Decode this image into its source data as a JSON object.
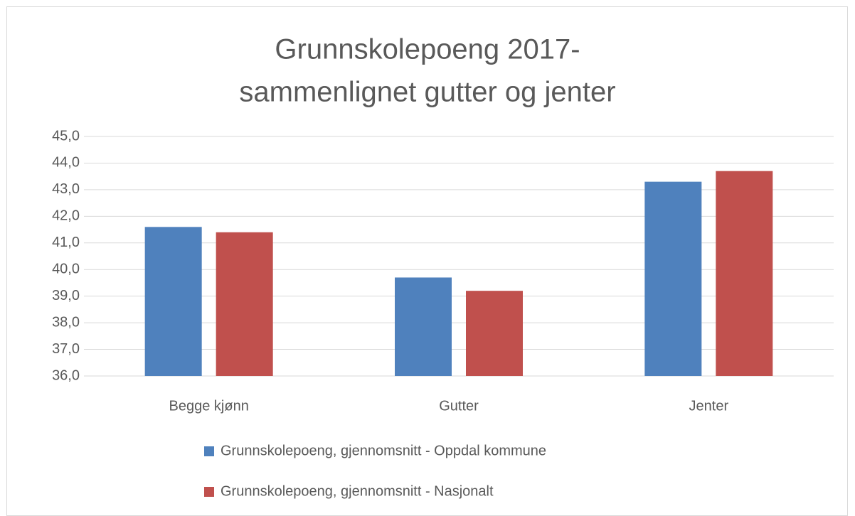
{
  "chart_data": {
    "type": "bar",
    "title": [
      "Grunnskolepoeng 2017-",
      "sammenlignet gutter og jenter"
    ],
    "categories": [
      "Begge kjønn",
      "Gutter",
      "Jenter"
    ],
    "series": [
      {
        "name": "Grunnskolepoeng, gjennomsnitt - Oppdal kommune",
        "color": "#4f81bd",
        "values": [
          41.6,
          39.7,
          43.3
        ]
      },
      {
        "name": "Grunnskolepoeng, gjennomsnitt - Nasjonalt",
        "color": "#c0504d",
        "values": [
          41.4,
          39.2,
          43.7
        ]
      }
    ],
    "ylim": [
      36,
      45
    ],
    "yticks": [
      {
        "value": 36,
        "label": "36,0"
      },
      {
        "value": 37,
        "label": "37,0"
      },
      {
        "value": 38,
        "label": "38,0"
      },
      {
        "value": 39,
        "label": "39,0"
      },
      {
        "value": 40,
        "label": "40,0"
      },
      {
        "value": 41,
        "label": "41,0"
      },
      {
        "value": 42,
        "label": "42,0"
      },
      {
        "value": 43,
        "label": "43,0"
      },
      {
        "value": 44,
        "label": "44,0"
      },
      {
        "value": 45,
        "label": "45,0"
      }
    ],
    "grid": true,
    "legend": "bottom"
  }
}
